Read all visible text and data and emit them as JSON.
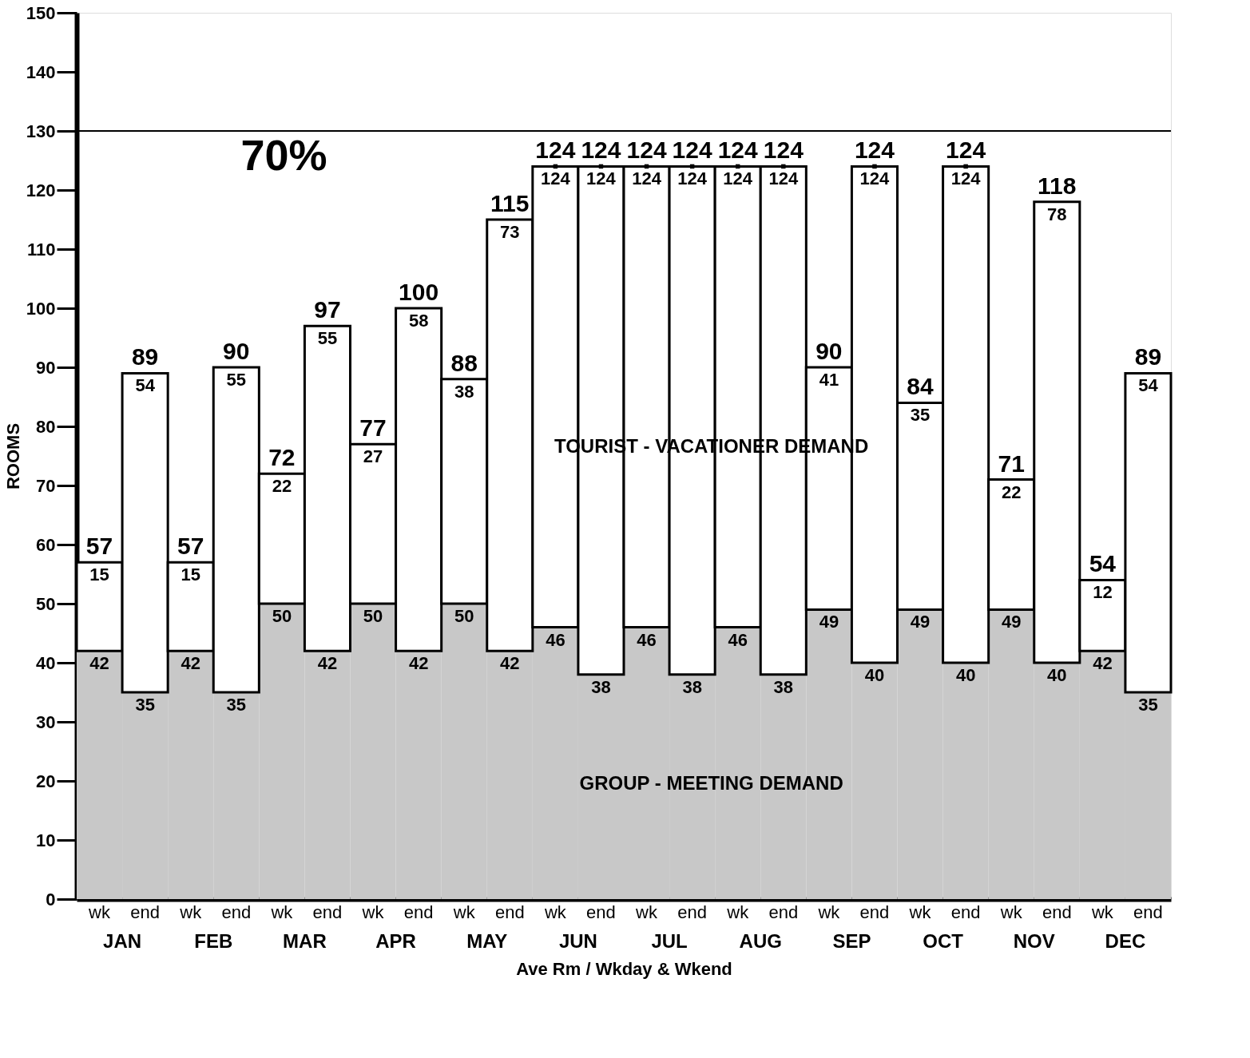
{
  "chart_data": {
    "type": "bar",
    "stacked": true,
    "ylabel": "ROOMS",
    "xlabel": "Ave Rm / Wkday & Wkend",
    "categories": [
      "wk",
      "end",
      "wk",
      "end",
      "wk",
      "end",
      "wk",
      "end",
      "wk",
      "end",
      "wk",
      "end",
      "wk",
      "end",
      "wk",
      "end",
      "wk",
      "end",
      "wk",
      "end",
      "wk",
      "end",
      "wk",
      "end"
    ],
    "series": [
      {
        "name": "GROUP - MEETING DEMAND",
        "color": "#c8c8c8",
        "values": [
          42,
          35,
          42,
          35,
          50,
          42,
          50,
          42,
          50,
          42,
          46,
          38,
          46,
          38,
          46,
          38,
          49,
          40,
          49,
          40,
          49,
          40,
          42,
          35
        ],
        "value_labels": [
          "42",
          "35",
          "42",
          "35",
          "50",
          "42",
          "50",
          "42",
          "50",
          "42",
          "46",
          "38",
          "46",
          "38",
          "46",
          "38",
          "49",
          "40",
          "49",
          "40",
          "49",
          "40",
          "42",
          "35"
        ]
      },
      {
        "name": "TOURIST - VACATIONER DEMAND",
        "color": "#ffffff",
        "values": [
          15,
          54,
          15,
          55,
          22,
          55,
          27,
          58,
          38,
          73,
          78,
          86,
          78,
          86,
          78,
          86,
          41,
          84,
          35,
          84,
          22,
          78,
          12,
          54
        ],
        "value_labels": [
          "15",
          "54",
          "15",
          "55",
          "22",
          "55",
          "27",
          "58",
          "38",
          "73",
          null,
          null,
          null,
          null,
          null,
          null,
          "41",
          null,
          "35",
          null,
          "22",
          "78",
          "12",
          "54"
        ]
      },
      {
        "type": "scatter",
        "marker": "square",
        "color": "#000000",
        "values": [
          null,
          null,
          null,
          null,
          null,
          null,
          null,
          null,
          null,
          null,
          124,
          124,
          124,
          124,
          124,
          124,
          null,
          124,
          null,
          124,
          null,
          null,
          null,
          null
        ],
        "value_labels": [
          null,
          null,
          null,
          null,
          null,
          null,
          null,
          null,
          null,
          null,
          "124",
          "124",
          "124",
          "124",
          "124",
          "124",
          null,
          "124",
          null,
          "124",
          null,
          null,
          null,
          null
        ]
      }
    ],
    "totals": [
      "57",
      "89",
      "57",
      "90",
      "72",
      "97",
      "77",
      "100",
      "88",
      "115",
      "124",
      "124",
      "124",
      "124",
      "124",
      "124",
      "90",
      "124",
      "84",
      "124",
      "71",
      "118",
      "54",
      "89"
    ],
    "ylim": [
      0,
      150
    ],
    "yticks": [
      0,
      10,
      20,
      30,
      40,
      50,
      60,
      70,
      80,
      90,
      100,
      110,
      120,
      130,
      140,
      150
    ],
    "ref_lines": [
      {
        "axis": "y",
        "value": 130,
        "color": "#000000"
      }
    ],
    "annotations": [
      "JAN",
      "FEB",
      "MAR",
      "APR",
      "MAY",
      "JUN",
      "JUL",
      "AUG",
      "SEP",
      "OCT",
      "NOV",
      "DEC",
      {
        "text": "70%",
        "y": 130
      }
    ],
    "grid": false
  }
}
